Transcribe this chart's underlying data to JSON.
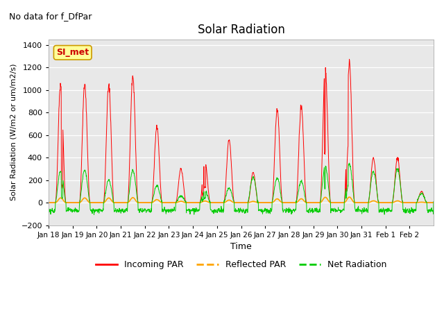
{
  "title": "Solar Radiation",
  "subtitle": "No data for f_DfPar",
  "xlabel": "Time",
  "ylabel": "Solar Radiation (W/m2 or um/m2/s)",
  "ylim": [
    -200,
    1450
  ],
  "yticks": [
    -200,
    0,
    200,
    400,
    600,
    800,
    1000,
    1200,
    1400
  ],
  "x_tick_labels": [
    "Jan 18",
    "Jan 19",
    "Jan 20",
    "Jan 21",
    "Jan 22",
    "Jan 23",
    "Jan 24",
    "Jan 25",
    "Jan 26",
    "Jan 27",
    "Jan 28",
    "Jan 29",
    "Jan 30",
    "Jan 31",
    "Feb 1",
    "Feb 2"
  ],
  "legend_entries": [
    "Incoming PAR",
    "Reflected PAR",
    "Net Radiation"
  ],
  "line_colors": [
    "#ff0000",
    "#ffa500",
    "#00cc00"
  ],
  "bg_color": "#e8e8e8",
  "legend_box_edge": "#cc9900",
  "annotation_label": "SI_met",
  "annotation_color": "#cc0000",
  "annotation_bg": "#ffff99",
  "n_days": 16,
  "points_per_day": 96,
  "day_peaks_incoming": [
    1050,
    1040,
    1040,
    1120,
    670,
    300,
    360,
    560,
    270,
    830,
    860,
    1180,
    1230,
    400,
    400,
    100
  ],
  "day_peaks_net": [
    280,
    285,
    200,
    290,
    150,
    60,
    100,
    130,
    225,
    220,
    190,
    320,
    340,
    280,
    300,
    80
  ]
}
